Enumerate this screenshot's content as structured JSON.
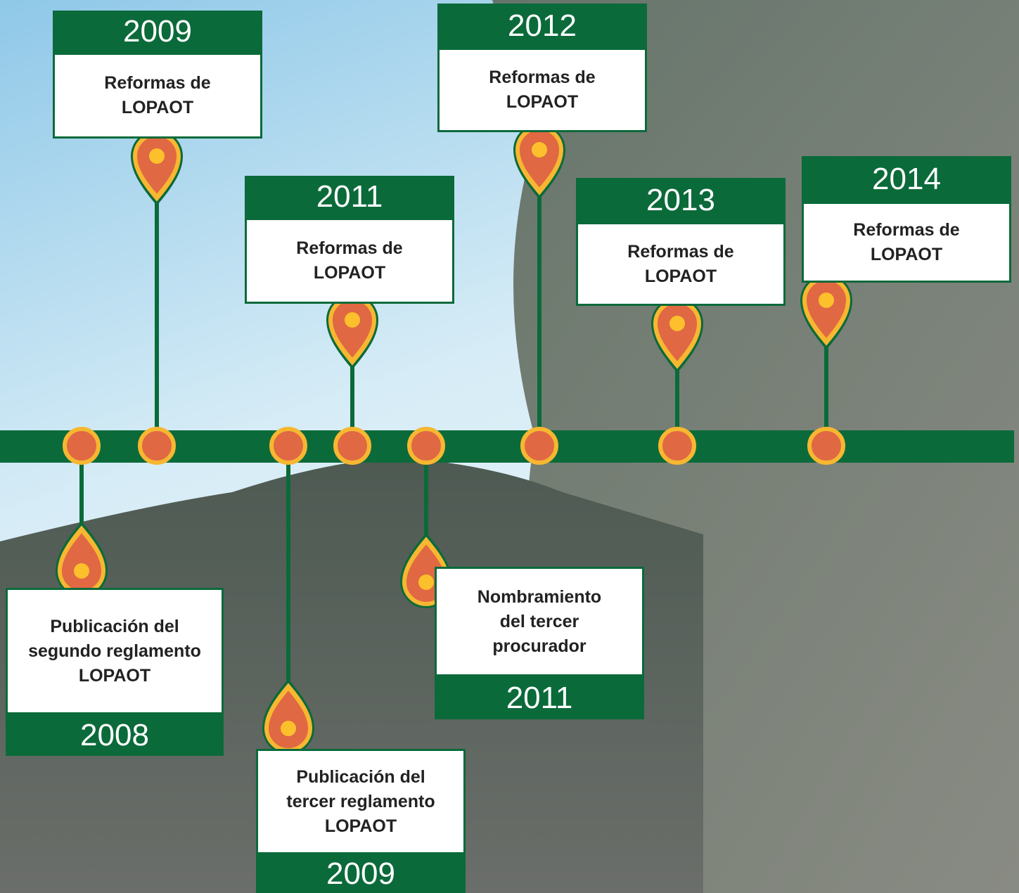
{
  "events": [
    {
      "year": "2009",
      "lines": [
        "Reformas de",
        "LOPAOT"
      ]
    },
    {
      "year": "2011",
      "lines": [
        "Reformas de",
        "LOPAOT"
      ]
    },
    {
      "year": "2012",
      "lines": [
        "Reformas de",
        "LOPAOT"
      ]
    },
    {
      "year": "2013",
      "lines": [
        "Reformas de",
        "LOPAOT"
      ]
    },
    {
      "year": "2014",
      "lines": [
        "Reformas de",
        "LOPAOT"
      ]
    },
    {
      "year": "2008",
      "lines": [
        "Publicación del",
        "segundo reglamento",
        "LOPAOT"
      ]
    },
    {
      "year": "2009",
      "lines": [
        "Publicación del",
        "tercer reglamento",
        "LOPAOT"
      ]
    },
    {
      "year": "2011",
      "lines": [
        "Nombramiento",
        "del tercer",
        "procurador"
      ]
    }
  ]
}
